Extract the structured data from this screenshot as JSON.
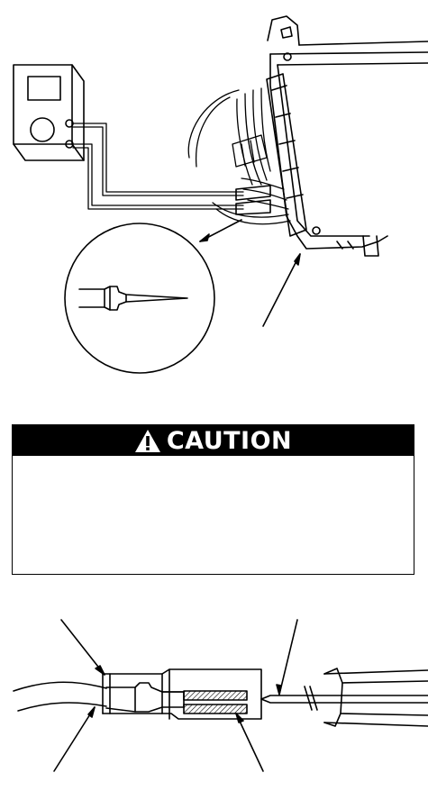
{
  "caution": {
    "title": "CAUTION",
    "icon": "warning-triangle-icon"
  }
}
